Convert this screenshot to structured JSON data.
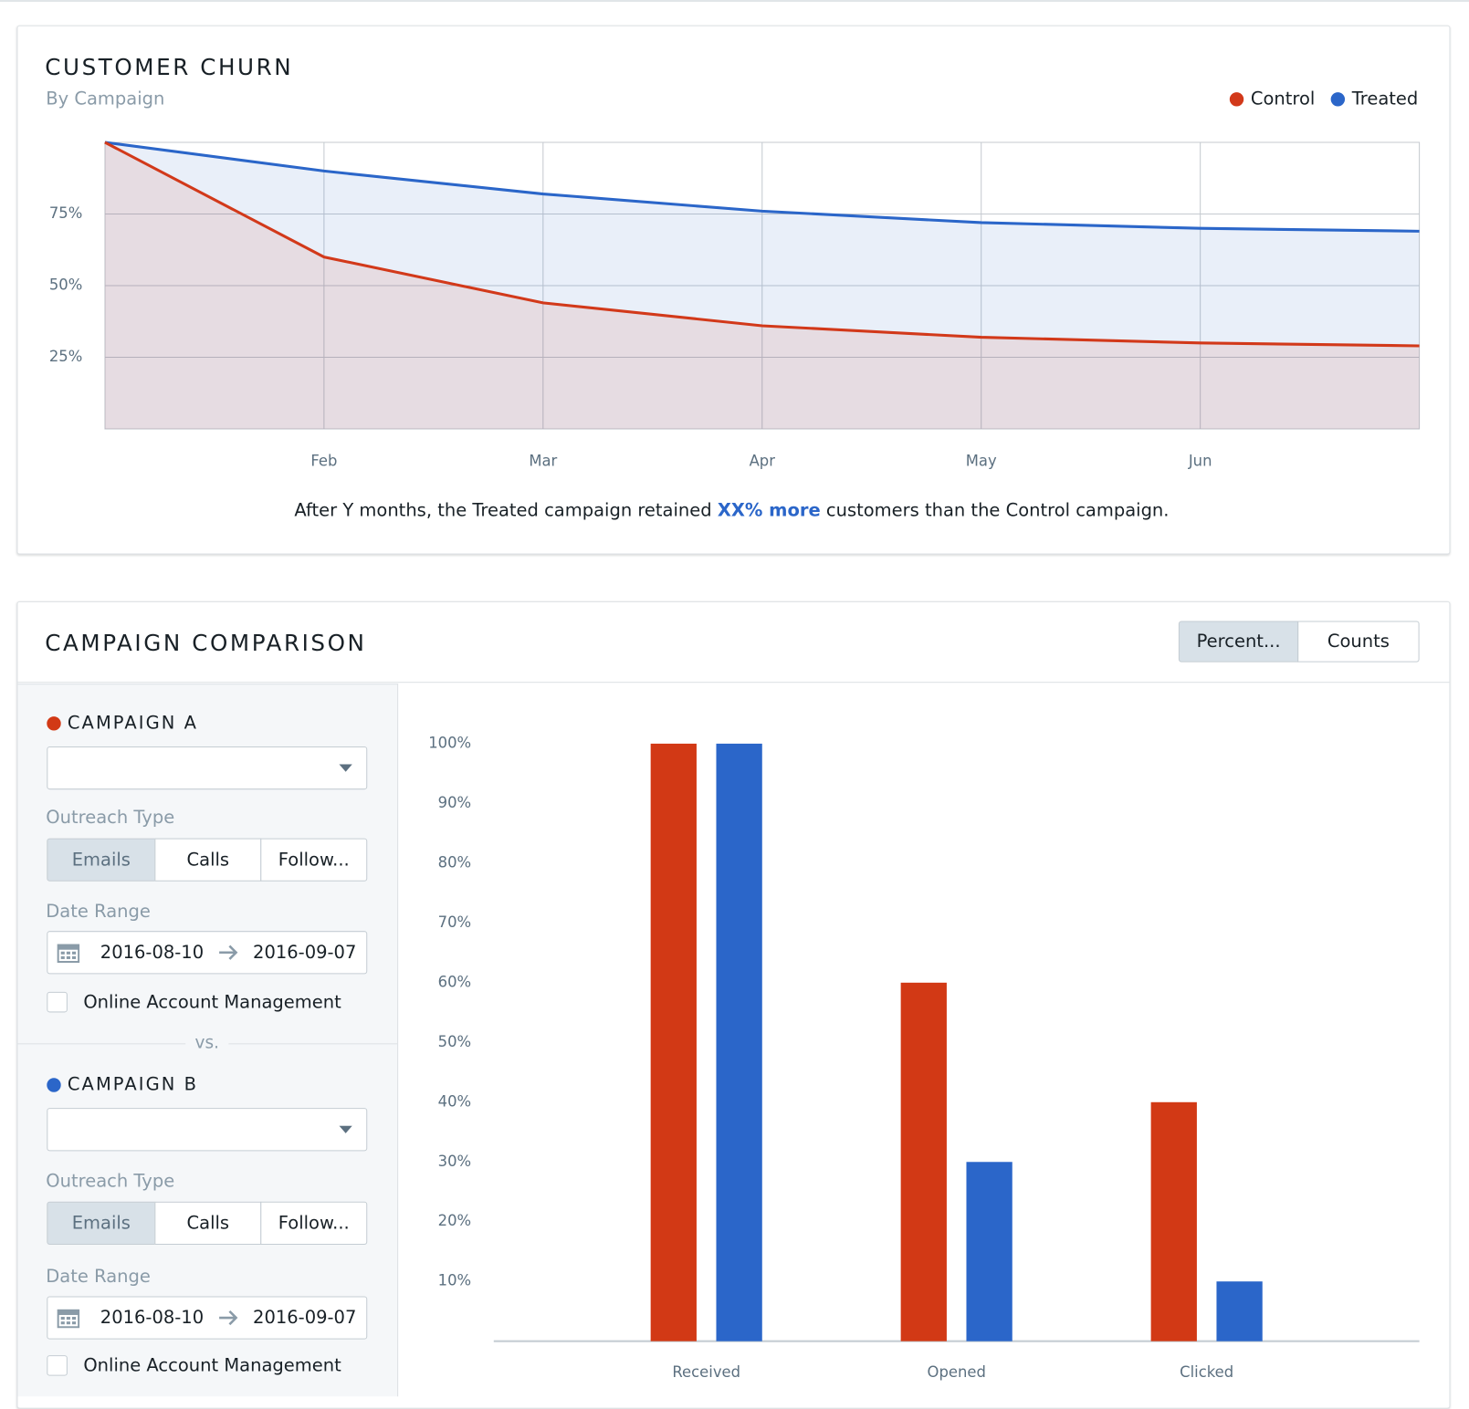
{
  "chart_data": [
    {
      "type": "line",
      "title": "CUSTOMER CHURN",
      "subtitle": "By Campaign",
      "categories": [
        null,
        "Feb",
        "Mar",
        "Apr",
        "May",
        "Jun",
        null
      ],
      "series": [
        {
          "name": "Control",
          "color": "#d2391a",
          "values": [
            100,
            60,
            44,
            36,
            32,
            30,
            29
          ]
        },
        {
          "name": "Treated",
          "color": "#2b66c9",
          "values": [
            100,
            90,
            82,
            76,
            72,
            70,
            69
          ]
        }
      ],
      "ylim": [
        0,
        100
      ],
      "yticks": [
        {
          "value": 25,
          "label": "25%"
        },
        {
          "value": 50,
          "label": "50%"
        },
        {
          "value": 75,
          "label": "75%"
        }
      ],
      "grid": true,
      "legend": "top-right",
      "annotation": [
        "After Y months, the Treated campaign retained ",
        "XX% more",
        " customers than the Control campaign."
      ]
    },
    {
      "type": "bar",
      "title": "CAMPAIGN COMPARISON",
      "categories": [
        "Received",
        "Opened",
        "Clicked"
      ],
      "series": [
        {
          "name": "CAMPAIGN A",
          "color": "#d23915",
          "values": [
            100,
            60,
            40
          ]
        },
        {
          "name": "CAMPAIGN B",
          "color": "#2b66c9",
          "values": [
            100,
            30,
            10
          ]
        }
      ],
      "ylim": [
        0,
        100
      ],
      "yticks": [
        {
          "value": 10,
          "label": "10%"
        },
        {
          "value": 20,
          "label": "20%"
        },
        {
          "value": 30,
          "label": "30%"
        },
        {
          "value": 40,
          "label": "40%"
        },
        {
          "value": 50,
          "label": "50%"
        },
        {
          "value": 60,
          "label": "60%"
        },
        {
          "value": 70,
          "label": "70%"
        },
        {
          "value": 80,
          "label": "80%"
        },
        {
          "value": 90,
          "label": "90%"
        },
        {
          "value": 100,
          "label": "100%"
        }
      ],
      "grid": false
    }
  ],
  "controls": {
    "view_toggle": [
      "Percent...",
      "Counts"
    ],
    "vs": "vs.",
    "campaigns": [
      {
        "outreach_label": "Outreach Type",
        "outreach_options": [
          "Emails",
          "Calls",
          "Follow..."
        ],
        "date_label": "Date Range",
        "start": "2016-08-10",
        "end": "2016-09-07",
        "checkbox": "Online Account Management"
      },
      {
        "outreach_label": "Outreach Type",
        "outreach_options": [
          "Emails",
          "Calls",
          "Follow..."
        ],
        "date_label": "Date Range",
        "start": "2016-08-10",
        "end": "2016-09-07",
        "checkbox": "Online Account Management"
      }
    ]
  }
}
